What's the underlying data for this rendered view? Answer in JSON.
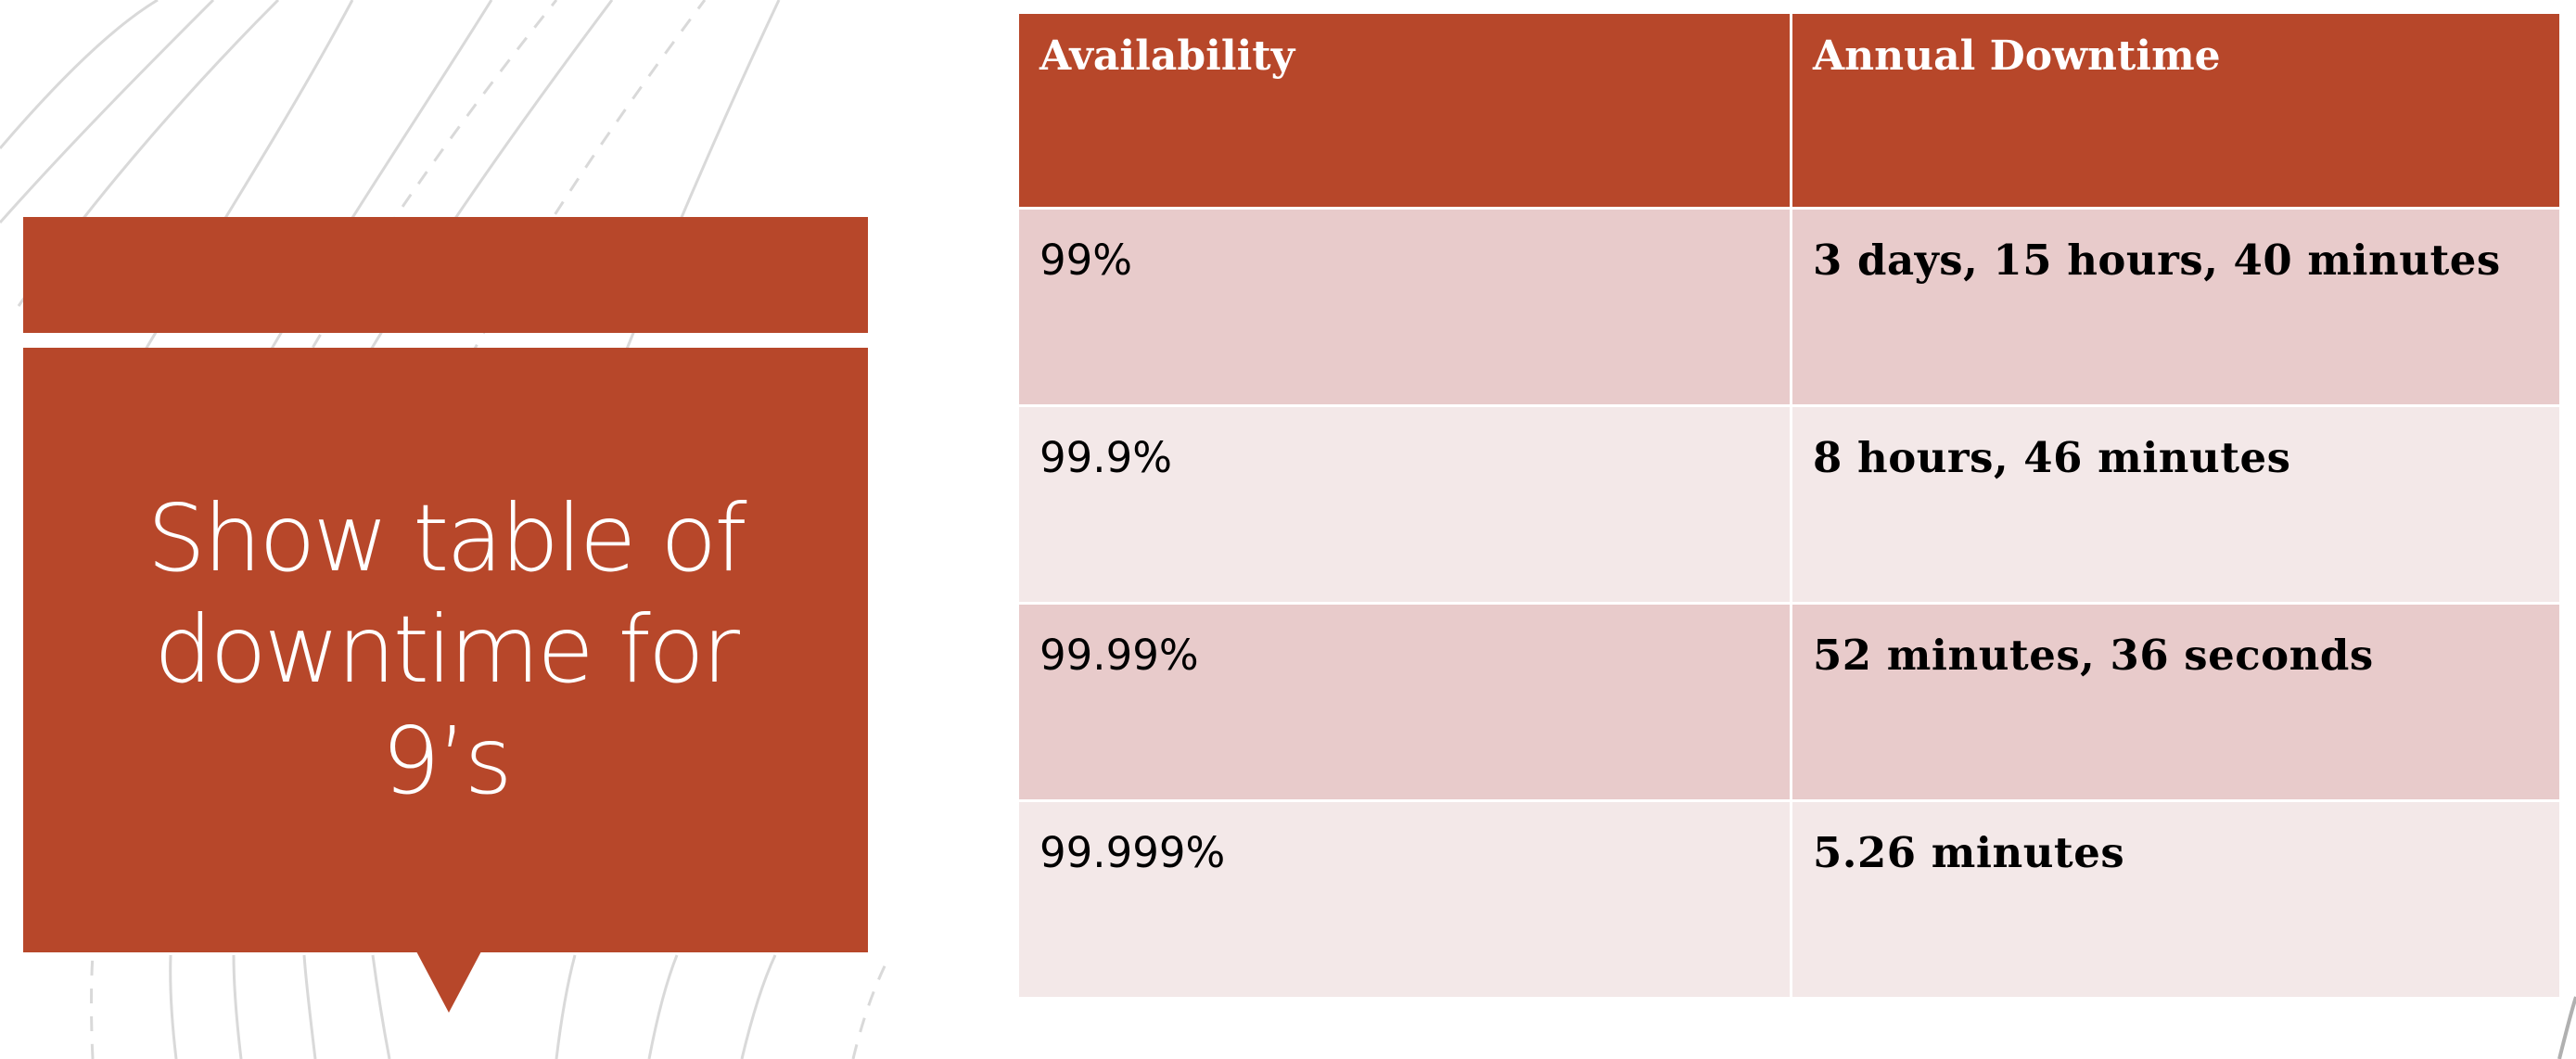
{
  "slide": {
    "title": "Show table of downtime for 9’s"
  },
  "table": {
    "headers": [
      "Availability",
      "Annual Downtime"
    ],
    "rows": [
      [
        "99%",
        "3 days, 15 hours, 40 minutes"
      ],
      [
        "99.9%",
        "8 hours, 46 minutes"
      ],
      [
        "99.99%",
        "52 minutes, 36 seconds"
      ],
      [
        "99.999%",
        "5.26 minutes"
      ]
    ]
  },
  "colors": {
    "accent": "#b7472a",
    "row_odd": "#e8cbcb",
    "row_even": "#f3e8e8",
    "text_on_accent": "#ffffff"
  }
}
